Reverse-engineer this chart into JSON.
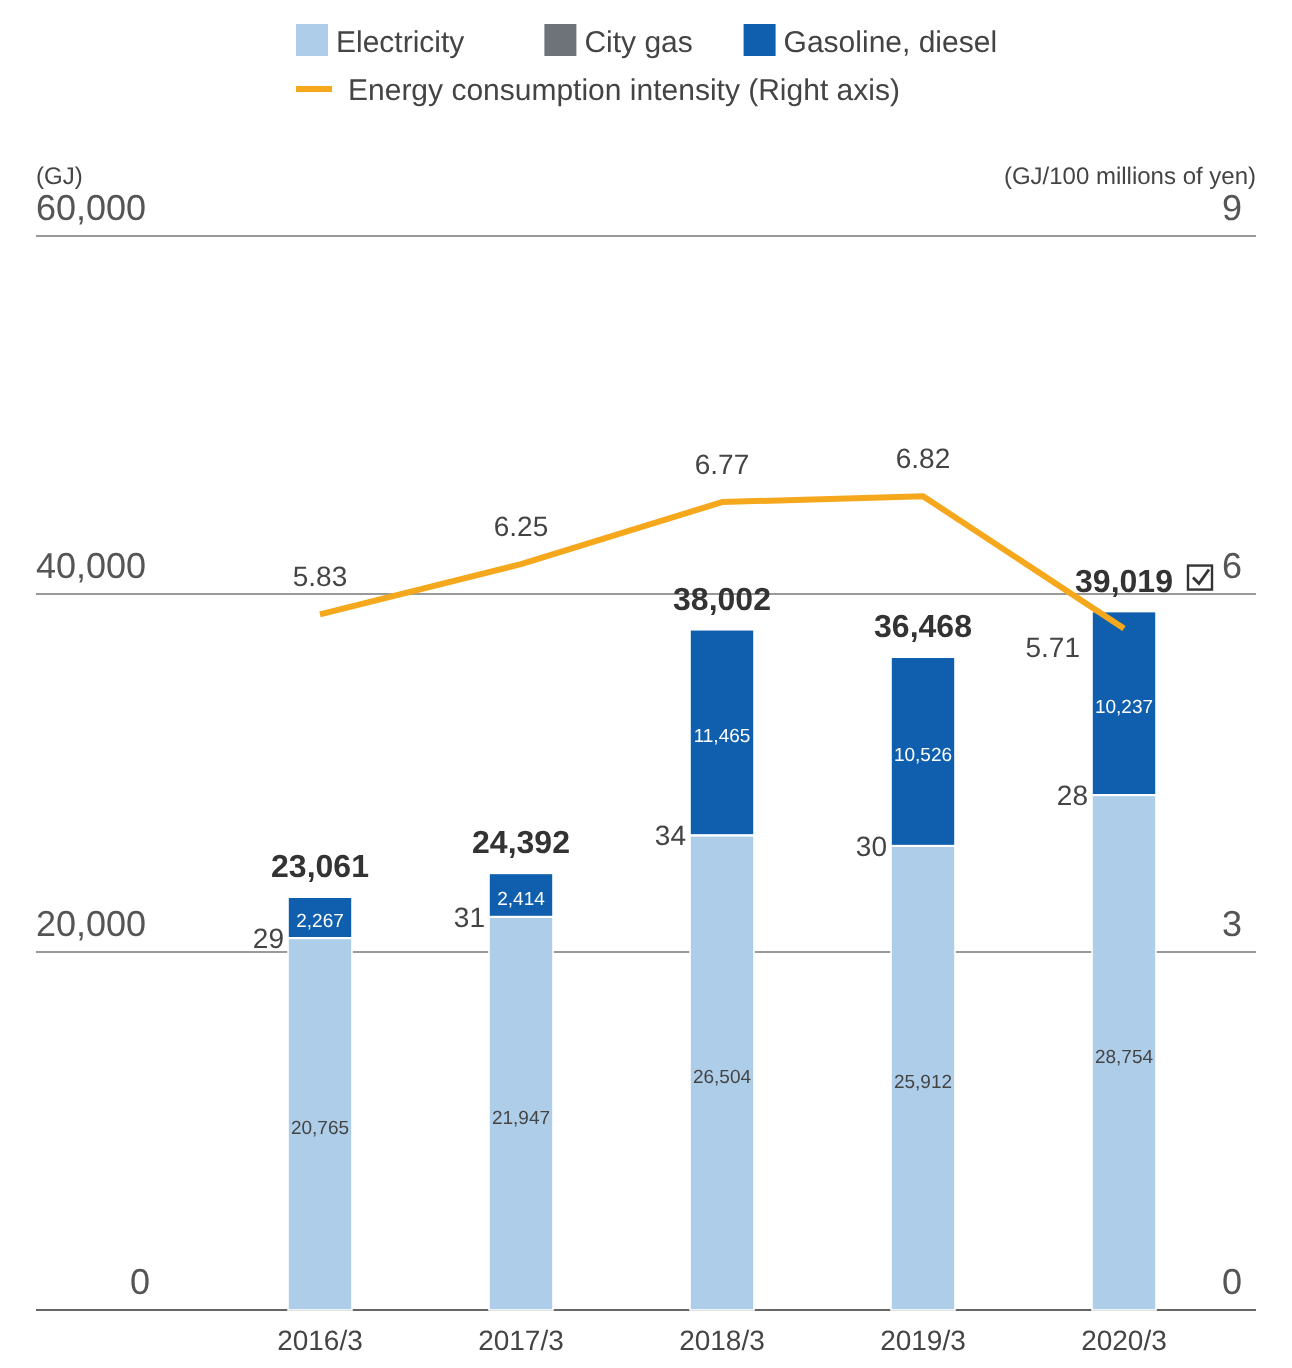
{
  "chart_data": {
    "type": "bar",
    "stacked": true,
    "categories": [
      "2016/3",
      "2017/3",
      "2018/3",
      "2019/3",
      "2020/3"
    ],
    "ylabel": "(GJ)",
    "y2label": "(GJ/100 millions of yen)",
    "ylim": [
      0,
      60000
    ],
    "yticks": [
      {
        "value": 0,
        "label": "0"
      },
      {
        "value": 20000,
        "label": "20,000"
      },
      {
        "value": 40000,
        "label": "40,000"
      },
      {
        "value": 60000,
        "label": "60,000"
      }
    ],
    "y2lim": [
      0,
      9
    ],
    "y2ticks": [
      0,
      3,
      6,
      9
    ],
    "grid": "y",
    "legend": "top",
    "marker": "none",
    "line_style": "solid",
    "totals": [
      "23,061",
      "24,392",
      "38,002",
      "36,468",
      "39,019"
    ],
    "series": [
      {
        "name": "Electricity",
        "color": "#aecde9",
        "values": [
          20765,
          21947,
          26504,
          25912,
          28754
        ],
        "value_labels": [
          "20,765",
          "21,947",
          "26,504",
          "25,912",
          "28,754"
        ]
      },
      {
        "name": "City gas",
        "color": "#6d7378",
        "values": [
          29,
          31,
          34,
          30,
          28
        ],
        "value_labels": [
          "29",
          "31",
          "34",
          "30",
          "28"
        ]
      },
      {
        "name": "Gasoline, diesel",
        "color": "#0f5fae",
        "values": [
          2267,
          2414,
          11465,
          10526,
          10237
        ],
        "value_labels": [
          "2,267",
          "2,414",
          "11,465",
          "10,526",
          "10,237"
        ]
      },
      {
        "name": "Energy consumption intensity (Right axis)",
        "type": "line",
        "axis": "y2",
        "color": "#f5a81c",
        "values": [
          5.83,
          6.25,
          6.77,
          6.82,
          5.71
        ],
        "value_labels": [
          "5.83",
          "6.25",
          "6.77",
          "6.82",
          "5.71"
        ]
      }
    ]
  }
}
